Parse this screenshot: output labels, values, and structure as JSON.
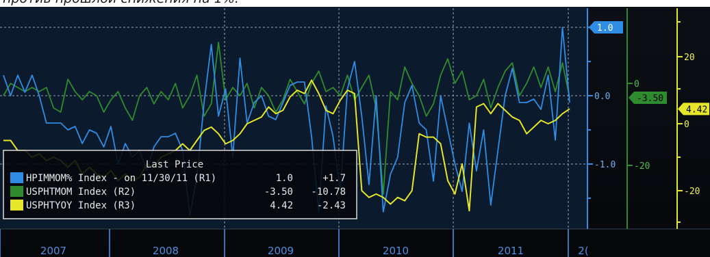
{
  "caption": "против прошлой снижения на 1%.",
  "chart_data": {
    "type": "line",
    "x_tick_labels": [
      "2007",
      "2008",
      "2009",
      "2010",
      "2011",
      "2("
    ],
    "axes": {
      "r1": {
        "ticks": [
          {
            "v": 1.0,
            "label": "1.0"
          },
          {
            "v": 0.0,
            "label": "0.0"
          },
          {
            "v": -1.0,
            "label": "-1.0"
          }
        ],
        "ylim": [
          -2.0,
          1.0
        ]
      },
      "r2": {
        "ticks": [
          {
            "v": 0,
            "label": "0"
          },
          {
            "v": -20,
            "label": "-20"
          }
        ],
        "ylim": [
          -30,
          8
        ]
      },
      "r3": {
        "ticks": [
          {
            "v": 20,
            "label": "20"
          },
          {
            "v": 0,
            "label": "0"
          },
          {
            "v": -20,
            "label": "-20"
          }
        ],
        "ylim": [
          -30,
          30
        ]
      }
    },
    "legend": {
      "title": "Last Price",
      "rows": [
        {
          "name": "HPIMMOM% Index - on 11/30/11 (R1)",
          "last": "1.0",
          "change": "+1.7",
          "color": "#2f8de4"
        },
        {
          "name": "USPHTMOM Index (R2)",
          "last": "-3.50",
          "change": "-10.78",
          "color": "#2e8b2e"
        },
        {
          "name": "USPHTYOY Index (R3)",
          "last": "4.42",
          "change": "-2.43",
          "color": "#e6e62a"
        }
      ]
    },
    "flags": [
      {
        "axis": "r1",
        "value": 1.0,
        "label": "1.0",
        "color": "#2f8de4"
      },
      {
        "axis": "r2",
        "value": -3.5,
        "label": "-3.50",
        "color": "#2e8b2e"
      },
      {
        "axis": "r3",
        "value": 4.42,
        "label": "4.42",
        "color": "#e6e62a"
      }
    ],
    "series": [
      {
        "key": "hpi",
        "axis": "r1",
        "color": "#2f8de4",
        "x": [
          0,
          2,
          4,
          6,
          8,
          10,
          12,
          14,
          16,
          18,
          20,
          22,
          24,
          26,
          28,
          30,
          32,
          34,
          36,
          38,
          40,
          42,
          44,
          46,
          48,
          50,
          52,
          54,
          56,
          58,
          60,
          62,
          64,
          66,
          68,
          70,
          72,
          74,
          76,
          78,
          80,
          82,
          84,
          86,
          88,
          90,
          92,
          94,
          96,
          98,
          100,
          102,
          104,
          106,
          108,
          110,
          112,
          114,
          116,
          118,
          120,
          122,
          124,
          126,
          128,
          130,
          132,
          134,
          136,
          138,
          140,
          142,
          144,
          146,
          148,
          150,
          152,
          154,
          156,
          158
        ],
        "values": [
          0.3,
          0.0,
          0.3,
          0.05,
          0.3,
          0.0,
          -0.4,
          -0.4,
          -0.4,
          -0.5,
          -0.45,
          -0.7,
          -0.5,
          -0.55,
          -0.75,
          -0.45,
          -1.0,
          -0.7,
          -0.9,
          -0.8,
          -1.1,
          -0.75,
          -0.6,
          -0.6,
          -0.55,
          -0.8,
          -1.75,
          -1.2,
          -0.1,
          0.75,
          -0.3,
          0.1,
          -0.9,
          0.55,
          -0.4,
          -0.1,
          0.0,
          -0.3,
          -0.35,
          -0.1,
          0.15,
          0.2,
          0.2,
          -0.6,
          -1.7,
          -0.15,
          -0.6,
          -1.4,
          0.1,
          0.5,
          -0.3,
          -1.3,
          0.0,
          -1.7,
          -1.15,
          -0.9,
          -0.1,
          0.15,
          -0.4,
          -0.5,
          -1.25,
          0.0,
          -0.5,
          -1.0,
          -1.4,
          -0.4,
          -1.1,
          -0.5,
          -1.6,
          -0.8,
          0.0,
          0.4,
          -0.1,
          -0.1,
          -0.05,
          -0.2,
          0.3,
          -0.65,
          1.0,
          -0.1
        ]
      },
      {
        "key": "mom",
        "axis": "r2",
        "color": "#2e8b2e",
        "x": [
          0,
          2,
          4,
          6,
          8,
          10,
          12,
          14,
          16,
          18,
          20,
          22,
          24,
          26,
          28,
          30,
          32,
          34,
          36,
          38,
          40,
          42,
          44,
          46,
          48,
          50,
          52,
          54,
          56,
          58,
          60,
          62,
          64,
          66,
          68,
          70,
          72,
          74,
          76,
          78,
          80,
          82,
          84,
          86,
          88,
          90,
          92,
          94,
          96,
          98,
          100,
          102,
          104,
          106,
          108,
          110,
          112,
          114,
          116,
          118,
          120,
          122,
          124,
          126,
          128,
          130,
          132,
          134,
          136,
          138,
          140,
          142,
          144,
          146,
          148,
          150,
          152,
          154,
          156,
          158
        ],
        "values": [
          -3,
          0,
          -1,
          -2,
          -1,
          -2,
          -1,
          -6,
          -7,
          1,
          -2,
          -4,
          -2,
          -3,
          -7,
          -4,
          -2,
          -6,
          -9,
          -3,
          -1,
          -5,
          -2,
          -4,
          0,
          -6,
          -3,
          2,
          -8,
          -5,
          10,
          -4,
          -1,
          -3,
          0,
          -6,
          -1,
          -3,
          -7,
          -4,
          1,
          -2,
          -5,
          0,
          3,
          -2,
          -1,
          -3,
          2,
          -4,
          -1,
          2,
          -6,
          -27,
          -2,
          -4,
          4,
          0,
          -3,
          -8,
          -5,
          2,
          6,
          0,
          3,
          -4,
          -3,
          1,
          -6,
          -1,
          3,
          5,
          -3,
          0,
          4,
          -1,
          4,
          -2,
          5,
          -3.5
        ]
      },
      {
        "key": "yoy",
        "axis": "r3",
        "color": "#e6e62a",
        "x": [
          0,
          2,
          4,
          6,
          8,
          10,
          12,
          14,
          16,
          18,
          20,
          22,
          24,
          26,
          28,
          30,
          32,
          34,
          36,
          38,
          40,
          42,
          44,
          46,
          48,
          50,
          52,
          54,
          56,
          58,
          60,
          62,
          64,
          66,
          68,
          70,
          72,
          74,
          76,
          78,
          80,
          82,
          84,
          86,
          88,
          90,
          92,
          94,
          96,
          98,
          100,
          102,
          104,
          106,
          108,
          110,
          112,
          114,
          116,
          118,
          120,
          122,
          124,
          126,
          128,
          130,
          132,
          134,
          136,
          138,
          140,
          142,
          144,
          146,
          148,
          150,
          152,
          154,
          156,
          158
        ],
        "values": [
          -5,
          -5,
          -8,
          -8,
          -10,
          -9,
          -11,
          -10,
          -11,
          -13,
          -11,
          -15,
          -13,
          -15,
          -16,
          -14,
          -17,
          -15,
          -17,
          -16,
          -12,
          -13,
          -10,
          -9,
          -8,
          -6,
          -8,
          -5,
          -2,
          -1,
          -3,
          -6,
          -5,
          -3,
          0,
          1,
          2,
          5,
          3,
          4,
          8,
          10,
          9,
          13,
          9,
          4,
          3,
          7,
          10,
          9,
          -20,
          -22,
          -21,
          -22,
          -24,
          -22,
          -23,
          -20,
          -3,
          -4,
          -4,
          -6,
          -17,
          -21,
          -12,
          -26,
          5,
          6,
          3,
          6,
          4,
          2,
          1,
          -3,
          -1,
          1,
          0,
          1,
          3,
          4.42
        ]
      }
    ],
    "grid": true,
    "legend_placement": "bottom-left"
  }
}
